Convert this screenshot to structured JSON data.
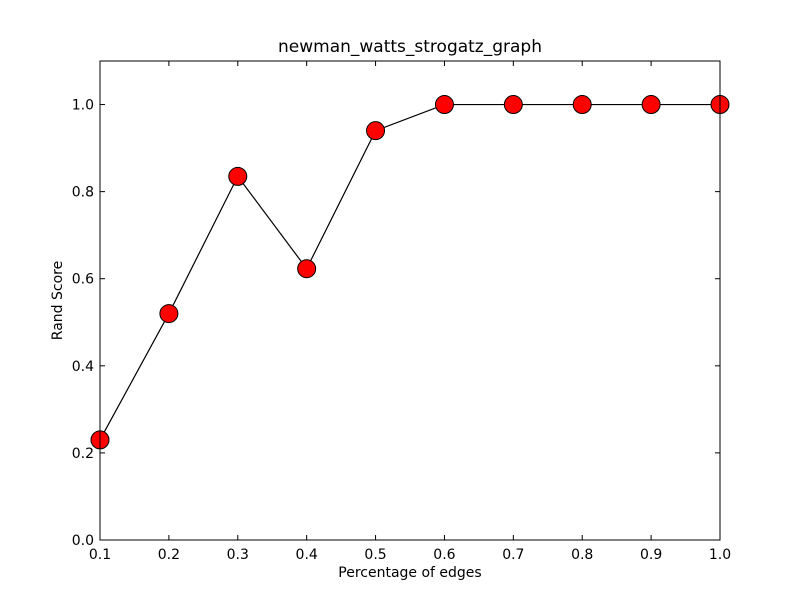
{
  "chart_data": {
    "type": "line",
    "title": "newman_watts_strogatz_graph",
    "xlabel": "Percentage of edges",
    "ylabel": "Rand Score",
    "x": [
      0.1,
      0.2,
      0.3,
      0.4,
      0.5,
      0.6,
      0.7,
      0.8,
      0.9,
      1.0
    ],
    "series": [
      {
        "values": [
          0.23,
          0.52,
          0.835,
          0.623,
          0.94,
          1.0,
          1.0,
          1.0,
          1.0,
          1.0
        ],
        "line_color": "#000000",
        "marker": "circle",
        "marker_color": "#ff0000"
      }
    ],
    "xlim": [
      0.1,
      1.0
    ],
    "ylim": [
      0.0,
      1.1
    ],
    "xticks": [
      0.1,
      0.2,
      0.3,
      0.4,
      0.5,
      0.6,
      0.7,
      0.8,
      0.9,
      1.0
    ],
    "xtick_labels": [
      "0.1",
      "0.2",
      "0.3",
      "0.4",
      "0.5",
      "0.6",
      "0.7",
      "0.8",
      "0.9",
      "1.0"
    ],
    "yticks": [
      0.0,
      0.2,
      0.4,
      0.6,
      0.8,
      1.0
    ],
    "ytick_labels": [
      "0.0",
      "0.2",
      "0.4",
      "0.6",
      "0.8",
      "1.0"
    ],
    "grid": false,
    "legend": "none"
  }
}
